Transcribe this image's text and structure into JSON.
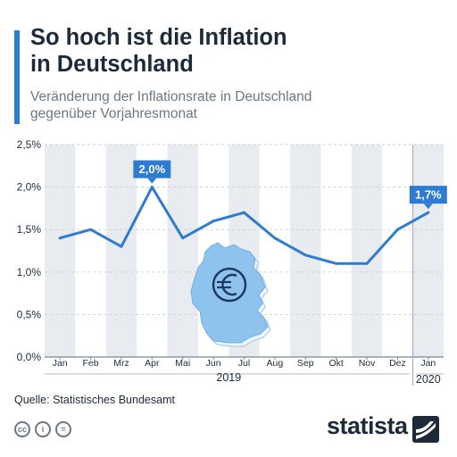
{
  "header": {
    "title_line1": "So hoch ist die Inflation",
    "title_line2": "in Deutschland",
    "subtitle_line1": "Veränderung der Inflationsrate in Deutschland",
    "subtitle_line2": "gegenüber Vorjahresmonat"
  },
  "chart_data": {
    "type": "line",
    "title": "So hoch ist die Inflation in Deutschland",
    "subtitle": "Veränderung der Inflationsrate in Deutschland gegenüber Vorjahresmonat",
    "categories": [
      "Jan",
      "Feb",
      "Mrz",
      "Apr",
      "Mai",
      "Jun",
      "Jul",
      "Aug",
      "Sep",
      "Okt",
      "Nov",
      "Dez",
      "Jan"
    ],
    "values": [
      1.4,
      1.5,
      1.3,
      2.0,
      1.4,
      1.6,
      1.7,
      1.4,
      1.2,
      1.1,
      1.1,
      1.5,
      1.7
    ],
    "year_labels": [
      {
        "label": "2019",
        "from": 0,
        "to": 11
      },
      {
        "label": "2020",
        "from": 12,
        "to": 12
      }
    ],
    "yticks": [
      "0,0%",
      "0,5%",
      "1,0%",
      "1,5%",
      "2,0%",
      "2,5%"
    ],
    "ylim": [
      0,
      2.5
    ],
    "annotations": [
      {
        "index": 3,
        "text": "2,0%"
      },
      {
        "index": 12,
        "text": "1,7%"
      }
    ],
    "grid": true,
    "line_color": "#2e7bd4",
    "band_color": "#e8ecf1",
    "map_color": "#8ec3ee"
  },
  "footer": {
    "source": "Quelle: Statistisches Bundesamt",
    "brand": "statista",
    "license_icons": [
      "cc-icon",
      "by-icon",
      "nd-icon"
    ]
  }
}
